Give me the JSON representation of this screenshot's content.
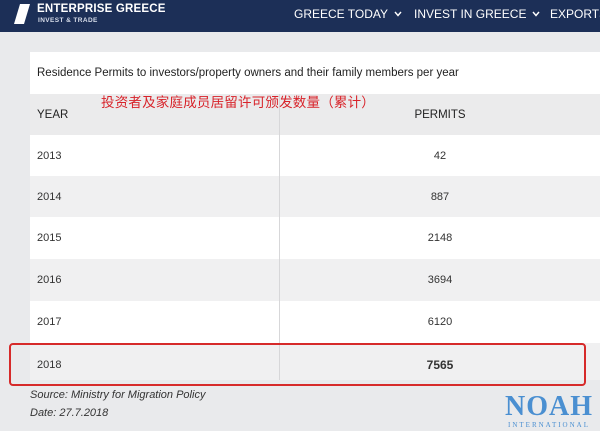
{
  "header": {
    "brand_name": "ENTERPRISE GREECE",
    "brand_sub": "INVEST & TRADE",
    "nav": [
      {
        "label": "GREECE TODAY"
      },
      {
        "label": "INVEST IN GREECE"
      },
      {
        "label": "EXPORTS"
      }
    ],
    "bar_color": "#1c2f57"
  },
  "table": {
    "caption": "Residence Permits to investors/property owners and their family members per year",
    "annotation_cn": "投资者及家庭成员居留许可颁发数量（累计）",
    "columns": [
      "YEAR",
      "PERMITS"
    ],
    "rows": [
      {
        "year": "2013",
        "permits": "42"
      },
      {
        "year": "2014",
        "permits": "887"
      },
      {
        "year": "2015",
        "permits": "2148"
      },
      {
        "year": "2016",
        "permits": "3694"
      },
      {
        "year": "2017",
        "permits": "6120"
      },
      {
        "year": "2018",
        "permits": "7565"
      }
    ],
    "highlight_color": "#d62a2a"
  },
  "footer": {
    "source": "Source: Ministry for Migration Policy",
    "date": "Date: 27.7.2018"
  },
  "watermark": {
    "text": "NOAH",
    "sub": "INTERNATIONAL"
  }
}
